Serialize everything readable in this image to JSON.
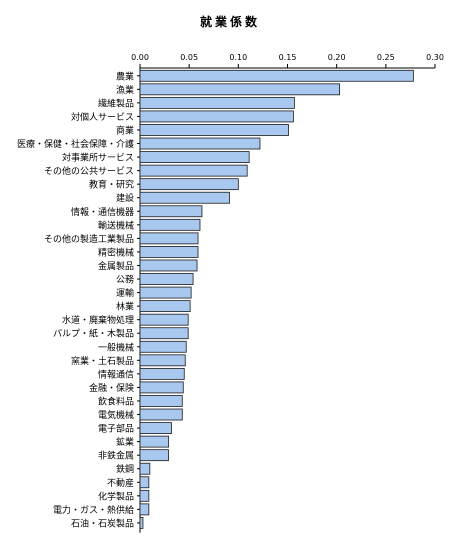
{
  "chart_data": {
    "type": "bar",
    "orientation": "horizontal",
    "title": "就業係数",
    "xlabel": "",
    "ylabel": "",
    "xlim": [
      0,
      0.3
    ],
    "ticks": [
      "0.00",
      "0.05",
      "0.10",
      "0.15",
      "0.20",
      "0.25",
      "0.30"
    ],
    "tick_values": [
      0,
      0.05,
      0.1,
      0.15,
      0.2,
      0.25,
      0.3
    ],
    "grid": false,
    "legend": "none",
    "colors": {
      "bar_fill": "#a9c8ef",
      "bar_stroke": "#1a1a1a"
    },
    "categories": [
      "農業",
      "漁業",
      "繊維製品",
      "対個人サービス",
      "商業",
      "医療・保健・社会保障・介護",
      "対事業所サービス",
      "その他の公共サービス",
      "教育・研究",
      "建設",
      "情報・通信機器",
      "輸送機械",
      "その他の製造工業製品",
      "精密機械",
      "金属製品",
      "公務",
      "運輸",
      "林業",
      "水道・廃棄物処理",
      "パルプ・紙・木製品",
      "一般機械",
      "窯業・土石製品",
      "情報通信",
      "金融・保険",
      "飲食料品",
      "電気機械",
      "電子部品",
      "鉱業",
      "非鉄金属",
      "鉄鋼",
      "不動産",
      "化学製品",
      "電力・ガス・熱供給",
      "石油・石炭製品"
    ],
    "values": [
      0.278,
      0.203,
      0.157,
      0.156,
      0.151,
      0.122,
      0.111,
      0.109,
      0.1,
      0.091,
      0.063,
      0.061,
      0.059,
      0.059,
      0.058,
      0.054,
      0.052,
      0.051,
      0.049,
      0.049,
      0.047,
      0.046,
      0.045,
      0.044,
      0.043,
      0.043,
      0.032,
      0.029,
      0.029,
      0.01,
      0.009,
      0.009,
      0.009,
      0.003
    ]
  }
}
